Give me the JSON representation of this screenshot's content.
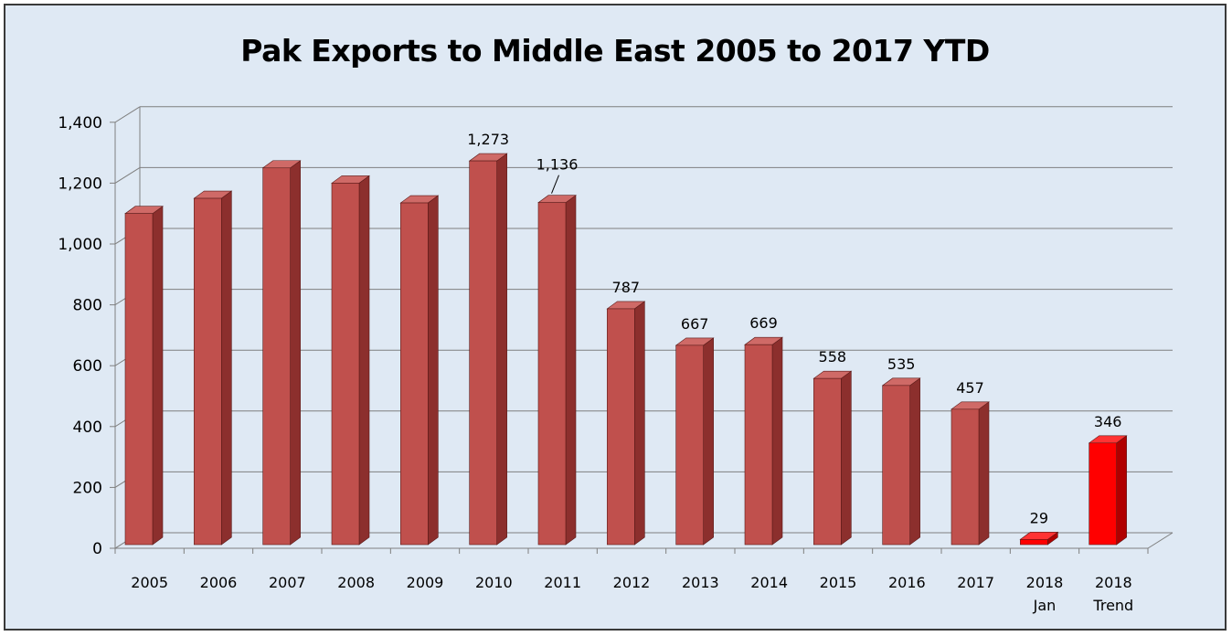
{
  "chart_data": {
    "type": "bar",
    "title": "Pak Exports to Middle East 2005 to 2017 YTD",
    "categories": [
      [
        "2005"
      ],
      [
        "2006"
      ],
      [
        "2007"
      ],
      [
        "2008"
      ],
      [
        "2009"
      ],
      [
        "2010"
      ],
      [
        "2011"
      ],
      [
        "2012"
      ],
      [
        "2013"
      ],
      [
        "2014"
      ],
      [
        "2015"
      ],
      [
        "2016"
      ],
      [
        "2017"
      ],
      [
        "2018",
        "Jan"
      ],
      [
        "2018",
        "Trend"
      ]
    ],
    "values": [
      1100,
      1150,
      1250,
      1200,
      1135,
      1273,
      1136,
      787,
      667,
      669,
      558,
      535,
      457,
      29,
      346
    ],
    "data_labels": [
      "",
      "",
      "",
      "",
      "",
      "1,273",
      "1,136",
      "787",
      "667",
      "669",
      "558",
      "535",
      "457",
      "29",
      "346"
    ],
    "highlight": [
      false,
      false,
      false,
      false,
      false,
      false,
      false,
      false,
      false,
      false,
      false,
      false,
      false,
      true,
      true
    ],
    "ylim": [
      0,
      1400
    ],
    "yticks": [
      0,
      200,
      400,
      600,
      800,
      1000,
      1200,
      1400
    ],
    "ytick_labels": [
      "0",
      "200",
      "400",
      "600",
      "800",
      "1,000",
      "1,200",
      "1,400"
    ],
    "xlabel": "",
    "ylabel": "",
    "grid": true,
    "legend": "none",
    "colors": {
      "bar_front": "#c0504d",
      "bar_side": "#8c2f2d",
      "bar_top": "#cf6a67",
      "highlight_front": "#ff0000",
      "highlight_side": "#b00000",
      "highlight_top": "#ff3333",
      "background": "#dfe9f4",
      "gridline": "#7f7f7f"
    }
  }
}
